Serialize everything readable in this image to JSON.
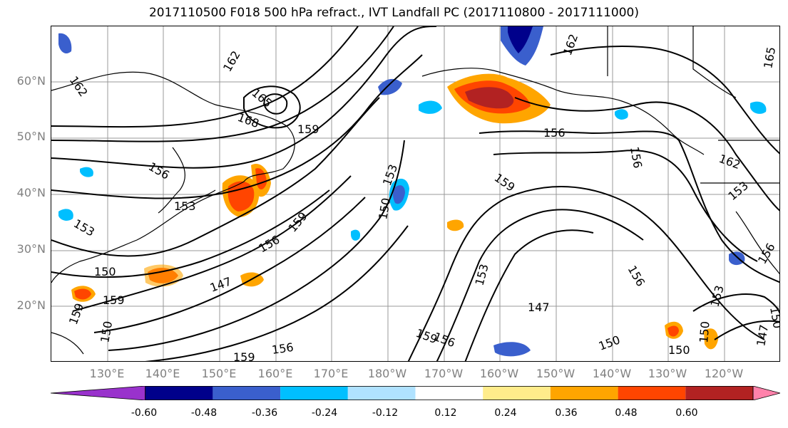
{
  "title": "2017110500 F018 500 hPa refract., IVT Landfall PC (2017110800 - 2017111000)",
  "map": {
    "lat_labels": [
      "60°N",
      "50°N",
      "40°N",
      "30°N",
      "20°N"
    ],
    "lon_labels": [
      "130°E",
      "140°E",
      "150°E",
      "160°E",
      "170°E",
      "180°W",
      "170°W",
      "160°W",
      "150°W",
      "140°W",
      "130°W",
      "120°W"
    ],
    "contour_labels": [
      "162",
      "162",
      "165",
      "168",
      "159",
      "156",
      "156",
      "153",
      "153",
      "150",
      "150",
      "147",
      "156",
      "159",
      "147",
      "150",
      "153",
      "156",
      "159",
      "159",
      "156",
      "162",
      "165",
      "162",
      "159",
      "156",
      "153",
      "150",
      "147",
      "156",
      "159",
      "153",
      "150",
      "150",
      "153",
      "159",
      "150",
      "156"
    ]
  },
  "colorbar": {
    "tick_labels": [
      "-0.60",
      "-0.48",
      "-0.36",
      "-0.24",
      "-0.12",
      "0.12",
      "0.24",
      "0.36",
      "0.48",
      "0.60"
    ],
    "colors": [
      "#9932cc",
      "#00008b",
      "#3a5fcd",
      "#00bfff",
      "#b0e2ff",
      "#ffffff",
      "#ffec8b",
      "#ffa500",
      "#ff4500",
      "#b22222",
      "#ff82ab"
    ]
  }
}
